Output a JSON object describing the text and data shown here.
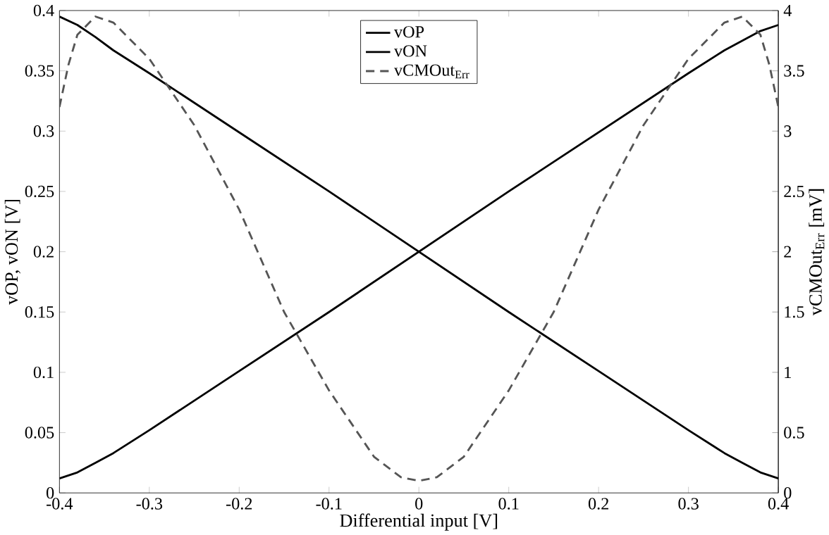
{
  "chart_data": {
    "type": "line",
    "xlabel": "Differential input [V]",
    "ylabel": "vOP, vON [V]",
    "y2label": "vCMOut$_{Err}$ [mV]",
    "xlim": [
      -0.4,
      0.4
    ],
    "ylim": [
      0,
      0.4
    ],
    "y2lim": [
      0,
      4
    ],
    "xticks": [
      -0.4,
      -0.3,
      -0.2,
      -0.1,
      0,
      0.1,
      0.2,
      0.3,
      0.4
    ],
    "yticks": [
      0,
      0.05,
      0.1,
      0.15,
      0.2,
      0.25,
      0.3,
      0.35,
      0.4
    ],
    "y2ticks": [
      0,
      0.5,
      1,
      1.5,
      2,
      2.5,
      3,
      3.5,
      4
    ],
    "legend": "top",
    "grid": false,
    "series": [
      {
        "name": "vOP",
        "color": "#000000",
        "line_style": "solid",
        "x": [
          -0.4,
          -0.38,
          -0.36,
          -0.34,
          -0.3,
          -0.2,
          -0.1,
          0,
          0.1,
          0.2,
          0.3,
          0.34,
          0.36,
          0.38,
          0.4
        ],
        "values": [
          0.012,
          0.017,
          0.025,
          0.033,
          0.052,
          0.101,
          0.15,
          0.2,
          0.25,
          0.299,
          0.348,
          0.367,
          0.375,
          0.383,
          0.388
        ]
      },
      {
        "name": "vON",
        "color": "#000000",
        "line_style": "solid",
        "x": [
          -0.4,
          -0.38,
          -0.36,
          -0.34,
          -0.3,
          -0.2,
          -0.1,
          0,
          0.1,
          0.2,
          0.3,
          0.34,
          0.36,
          0.38,
          0.4
        ],
        "values": [
          0.395,
          0.388,
          0.378,
          0.367,
          0.348,
          0.299,
          0.25,
          0.2,
          0.15,
          0.101,
          0.052,
          0.033,
          0.025,
          0.017,
          0.012
        ]
      },
      {
        "name": "vCMOut$_{Err}$",
        "color": "#555555",
        "line_style": "dashed",
        "axis": "y2",
        "x": [
          -0.4,
          -0.39,
          -0.38,
          -0.36,
          -0.34,
          -0.3,
          -0.25,
          -0.2,
          -0.15,
          -0.1,
          -0.05,
          -0.02,
          0,
          0.02,
          0.05,
          0.1,
          0.15,
          0.2,
          0.25,
          0.3,
          0.34,
          0.36,
          0.38,
          0.39,
          0.4
        ],
        "values": [
          3.2,
          3.55,
          3.8,
          3.95,
          3.9,
          3.6,
          3.05,
          2.35,
          1.5,
          0.85,
          0.3,
          0.13,
          0.1,
          0.13,
          0.3,
          0.85,
          1.5,
          2.35,
          3.05,
          3.6,
          3.9,
          3.95,
          3.8,
          3.55,
          3.2
        ]
      }
    ]
  }
}
